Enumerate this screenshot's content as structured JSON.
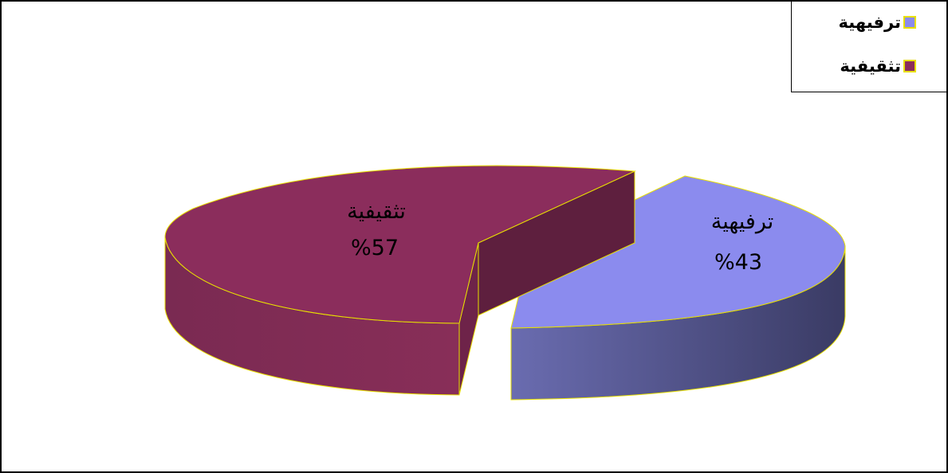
{
  "chart_data": {
    "type": "pie",
    "title": "",
    "slices": [
      {
        "label": "ترفيهية",
        "value": 43,
        "value_label": "%43",
        "color": "#8b8bee",
        "side_color": "#6a6cb0"
      },
      {
        "label": "تثقيفية",
        "value": 57,
        "value_label": "%57",
        "color": "#8b2d5c",
        "side_color": "#7a2a52"
      }
    ],
    "style": "3d-exploded",
    "legend_position": "top-right",
    "edge_color": "#e8e000"
  }
}
